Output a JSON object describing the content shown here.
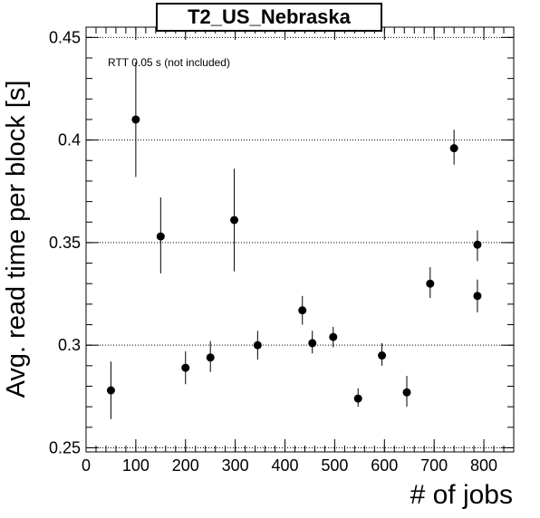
{
  "chart_data": {
    "type": "scatter",
    "title": "T2_US_Nebraska",
    "xlabel": "# of jobs",
    "ylabel": "Avg. read time per block [s]",
    "annotation": "RTT 0.05 s (not included)",
    "xlim": [
      0,
      860
    ],
    "ylim": [
      0.248,
      0.455
    ],
    "xticks": [
      0,
      100,
      200,
      300,
      400,
      500,
      600,
      700,
      800
    ],
    "yticks": [
      0.25,
      0.3,
      0.35,
      0.4,
      0.45
    ],
    "ytick_labels": [
      "0.25",
      "0.3",
      "0.35",
      "0.4",
      "0.45"
    ],
    "grid": "horizontal-dotted",
    "points": [
      {
        "x": 50,
        "y": 0.278,
        "ylow": 0.264,
        "yhigh": 0.292
      },
      {
        "x": 100,
        "y": 0.41,
        "ylow": 0.382,
        "yhigh": 0.438
      },
      {
        "x": 150,
        "y": 0.353,
        "ylow": 0.335,
        "yhigh": 0.372
      },
      {
        "x": 200,
        "y": 0.289,
        "ylow": 0.281,
        "yhigh": 0.297
      },
      {
        "x": 250,
        "y": 0.294,
        "ylow": 0.287,
        "yhigh": 0.302
      },
      {
        "x": 298,
        "y": 0.361,
        "ylow": 0.336,
        "yhigh": 0.386
      },
      {
        "x": 345,
        "y": 0.3,
        "ylow": 0.293,
        "yhigh": 0.307
      },
      {
        "x": 435,
        "y": 0.317,
        "ylow": 0.31,
        "yhigh": 0.324
      },
      {
        "x": 455,
        "y": 0.301,
        "ylow": 0.296,
        "yhigh": 0.307
      },
      {
        "x": 497,
        "y": 0.304,
        "ylow": 0.299,
        "yhigh": 0.309
      },
      {
        "x": 547,
        "y": 0.274,
        "ylow": 0.27,
        "yhigh": 0.279
      },
      {
        "x": 595,
        "y": 0.295,
        "ylow": 0.29,
        "yhigh": 0.301
      },
      {
        "x": 645,
        "y": 0.277,
        "ylow": 0.27,
        "yhigh": 0.285
      },
      {
        "x": 692,
        "y": 0.33,
        "ylow": 0.323,
        "yhigh": 0.338
      },
      {
        "x": 740,
        "y": 0.396,
        "ylow": 0.388,
        "yhigh": 0.405
      },
      {
        "x": 787,
        "y": 0.349,
        "ylow": 0.341,
        "yhigh": 0.356
      },
      {
        "x": 787,
        "y": 0.324,
        "ylow": 0.316,
        "yhigh": 0.332
      }
    ]
  }
}
